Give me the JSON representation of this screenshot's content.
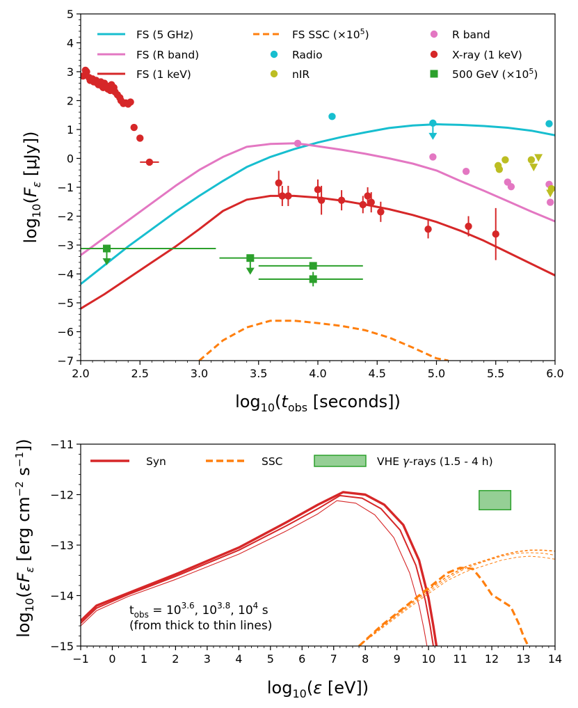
{
  "chart_data": [
    {
      "type": "line",
      "xlabel": "log10(t_obs [seconds])",
      "ylabel": "log10(F_ε [μJy])",
      "xlim": [
        2.0,
        6.0
      ],
      "ylim": [
        -7,
        5
      ],
      "xticks": [
        "2.0",
        "2.5",
        "3.0",
        "3.5",
        "4.0",
        "4.5",
        "5.0",
        "5.5",
        "6.0"
      ],
      "yticks": [
        "-7",
        "-6",
        "-5",
        "-4",
        "-3",
        "-2",
        "-1",
        "0",
        "1",
        "2",
        "3",
        "4",
        "5"
      ],
      "grid": false,
      "legend_position": "top",
      "colors": {
        "cyan": "#17becf",
        "pink": "#e377c2",
        "red": "#d62728",
        "orange": "#ff7f0e",
        "olive": "#bcbd22",
        "green": "#2ca02c"
      },
      "legend": [
        {
          "label": "FS (5 GHz)",
          "kind": "line",
          "color": "#17becf"
        },
        {
          "label": "FS (R band)",
          "kind": "line",
          "color": "#e377c2"
        },
        {
          "label": "FS (1 keV)",
          "kind": "line",
          "color": "#d62728"
        },
        {
          "label": "FS SSC (×10⁵)",
          "kind": "dashed",
          "color": "#ff7f0e"
        },
        {
          "label": "Radio",
          "kind": "dot",
          "color": "#17becf"
        },
        {
          "label": "nIR",
          "kind": "dot",
          "color": "#bcbd22"
        },
        {
          "label": "R band",
          "kind": "dot",
          "color": "#e377c2"
        },
        {
          "label": "X-ray (1 keV)",
          "kind": "dot",
          "color": "#d62728"
        },
        {
          "label": "500 GeV (×10⁵)",
          "kind": "square",
          "color": "#2ca02c"
        }
      ],
      "series": [
        {
          "name": "FS (5 GHz)",
          "color": "#17becf",
          "style": "solid",
          "x": [
            2.0,
            2.2,
            2.4,
            2.6,
            2.8,
            3.0,
            3.2,
            3.4,
            3.6,
            3.8,
            4.0,
            4.2,
            4.4,
            4.6,
            4.8,
            5.0,
            5.2,
            5.4,
            5.6,
            5.8,
            6.0
          ],
          "y": [
            -4.35,
            -3.7,
            -3.05,
            -2.45,
            -1.85,
            -1.3,
            -0.78,
            -0.3,
            0.05,
            0.32,
            0.55,
            0.74,
            0.9,
            1.05,
            1.14,
            1.18,
            1.16,
            1.12,
            1.06,
            0.96,
            0.8
          ]
        },
        {
          "name": "FS (R band)",
          "color": "#e377c2",
          "style": "solid",
          "x": [
            2.0,
            2.2,
            2.4,
            2.6,
            2.8,
            3.0,
            3.2,
            3.4,
            3.6,
            3.8,
            3.9,
            4.0,
            4.2,
            4.4,
            4.6,
            4.8,
            5.0,
            5.2,
            5.4,
            5.6,
            5.8,
            6.0
          ],
          "y": [
            -3.35,
            -2.75,
            -2.15,
            -1.55,
            -0.95,
            -0.4,
            0.05,
            0.4,
            0.5,
            0.52,
            0.48,
            0.42,
            0.3,
            0.16,
            0.0,
            -0.18,
            -0.42,
            -0.78,
            -1.12,
            -1.48,
            -1.84,
            -2.18
          ]
        },
        {
          "name": "FS (1 keV)",
          "color": "#d62728",
          "style": "solid",
          "x": [
            2.0,
            2.2,
            2.4,
            2.6,
            2.8,
            3.0,
            3.2,
            3.4,
            3.6,
            3.8,
            4.0,
            4.2,
            4.4,
            4.6,
            4.8,
            5.0,
            5.2,
            5.4,
            5.6,
            5.8,
            6.0
          ],
          "y": [
            -5.2,
            -4.7,
            -4.15,
            -3.6,
            -3.05,
            -2.45,
            -1.82,
            -1.43,
            -1.3,
            -1.3,
            -1.36,
            -1.46,
            -1.6,
            -1.76,
            -1.96,
            -2.2,
            -2.5,
            -2.85,
            -3.25,
            -3.65,
            -4.05
          ]
        },
        {
          "name": "FS SSC (×10⁵)",
          "color": "#ff7f0e",
          "style": "dashed",
          "x": [
            3.0,
            3.2,
            3.4,
            3.6,
            3.8,
            4.0,
            4.2,
            4.4,
            4.6,
            4.8,
            5.0,
            5.1
          ],
          "y": [
            -7.0,
            -6.3,
            -5.85,
            -5.62,
            -5.62,
            -5.7,
            -5.8,
            -5.95,
            -6.2,
            -6.55,
            -6.92,
            -7.0
          ]
        }
      ],
      "points": {
        "xray": {
          "color": "#d62728",
          "x": [
            2.02,
            2.04,
            2.05,
            2.07,
            2.08,
            2.1,
            2.11,
            2.13,
            2.14,
            2.15,
            2.17,
            2.18,
            2.19,
            2.2,
            2.22,
            2.23,
            2.25,
            2.26,
            2.28,
            2.29,
            2.31,
            2.33,
            2.34,
            2.36,
            2.38,
            2.4,
            2.42,
            2.45,
            2.5
          ],
          "y": [
            2.85,
            3.05,
            3.0,
            2.8,
            2.7,
            2.75,
            2.65,
            2.7,
            2.6,
            2.55,
            2.65,
            2.5,
            2.45,
            2.6,
            2.5,
            2.4,
            2.35,
            2.55,
            2.45,
            2.3,
            2.2,
            2.1,
            2.0,
            1.9,
            1.92,
            1.88,
            1.95,
            1.07,
            0.7
          ]
        },
        "xray_err": {
          "color": "#d62728",
          "x": [
            2.58,
            3.67,
            3.7,
            3.75,
            4.0,
            4.03,
            4.2,
            4.38,
            4.42,
            4.45,
            4.53,
            4.93,
            5.27,
            5.5
          ],
          "y": [
            -0.13,
            -0.85,
            -1.3,
            -1.3,
            -1.08,
            -1.45,
            -1.45,
            -1.6,
            -1.3,
            -1.52,
            -1.85,
            -2.45,
            -2.35,
            -2.62
          ],
          "yerr": [
            0,
            0.42,
            0.35,
            0.35,
            0.35,
            0.5,
            0.35,
            0.3,
            0.3,
            0.35,
            0.35,
            0.32,
            0.35,
            0.9
          ],
          "xerr": [
            0.08,
            0,
            0,
            0,
            0,
            0,
            0,
            0,
            0,
            0,
            0,
            0,
            0,
            0
          ]
        },
        "radio": {
          "color": "#17becf",
          "x": [
            4.12,
            4.97,
            5.95
          ],
          "y": [
            1.45,
            1.22,
            1.2
          ],
          "upper_limit": [
            false,
            true,
            false
          ]
        },
        "rband": {
          "color": "#e377c2",
          "x": [
            3.83,
            4.97,
            5.25,
            5.6,
            5.63,
            5.95,
            5.96
          ],
          "y": [
            0.52,
            0.05,
            -0.45,
            -0.82,
            -0.98,
            -0.9,
            -1.52
          ]
        },
        "nir": {
          "color": "#bcbd22",
          "x": [
            5.52,
            5.53,
            5.58,
            5.8,
            5.82,
            5.86,
            5.96,
            5.97
          ],
          "y": [
            -0.25,
            -0.38,
            -0.05,
            -0.05,
            -0.28,
            0.05,
            -1.18,
            -1.05
          ],
          "upper_limit": [
            false,
            false,
            false,
            false,
            true,
            true,
            true,
            false
          ]
        },
        "gev500": {
          "color": "#2ca02c",
          "x": [
            2.22,
            3.43,
            3.96,
            3.96
          ],
          "y": [
            -3.12,
            -3.45,
            -3.72,
            -4.18
          ],
          "xlo": [
            2.0,
            3.17,
            3.5,
            3.5
          ],
          "xhi": [
            3.14,
            3.95,
            4.38,
            4.38
          ],
          "upper_limit": [
            true,
            true,
            false,
            false
          ],
          "yerr": [
            0,
            0,
            0,
            0.25
          ]
        }
      }
    },
    {
      "type": "line",
      "xlabel": "log10(ε [eV])",
      "ylabel": "log10(εF_ε [erg cm⁻² s⁻¹])",
      "xlim": [
        -1,
        14
      ],
      "ylim": [
        -15,
        -11
      ],
      "xticks": [
        "−1",
        "0",
        "1",
        "2",
        "3",
        "4",
        "5",
        "6",
        "7",
        "8",
        "9",
        "10",
        "11",
        "12",
        "13",
        "14"
      ],
      "yticks": [
        "−15",
        "−14",
        "−13",
        "−12",
        "−11"
      ],
      "grid": false,
      "legend_position": "top",
      "legend": [
        {
          "label": "Syn",
          "kind": "line",
          "color": "#d62728"
        },
        {
          "label": "SSC",
          "kind": "dashed",
          "color": "#ff7f0e"
        },
        {
          "label": "VHE γ-rays (1.5 - 4 h)",
          "kind": "box",
          "color": "#2ca02c"
        }
      ],
      "annotation_line1": "t",
      "annotation_sub": "obs",
      "annotation_eq": " = 10",
      "annotation_exp1": "3.6",
      "annotation_sep1": ", 10",
      "annotation_exp2": "3.8",
      "annotation_sep2": ", 10",
      "annotation_exp3": "4",
      "annotation_unit": " s",
      "annotation_line2": "(from thick to thin lines)",
      "vhe_box": {
        "x": [
          11.6,
          12.6
        ],
        "y": [
          -12.3,
          -11.92
        ]
      },
      "syn": [
        {
          "width": 3.4,
          "x": [
            -1.0,
            -0.5,
            0.5,
            2.0,
            4.0,
            5.5,
            6.5,
            7.3,
            8.0,
            8.6,
            9.2,
            9.7,
            10.0,
            10.15,
            10.25
          ],
          "y": [
            -14.5,
            -14.2,
            -13.95,
            -13.58,
            -13.05,
            -12.55,
            -12.2,
            -11.95,
            -12.0,
            -12.2,
            -12.6,
            -13.3,
            -14.05,
            -14.6,
            -15.0
          ]
        },
        {
          "width": 2.0,
          "x": [
            -1.0,
            -0.5,
            0.5,
            2.0,
            4.0,
            5.5,
            6.5,
            7.2,
            7.9,
            8.5,
            9.1,
            9.6,
            9.9,
            10.05,
            10.15
          ],
          "y": [
            -14.55,
            -14.25,
            -13.98,
            -13.62,
            -13.1,
            -12.62,
            -12.28,
            -12.02,
            -12.07,
            -12.28,
            -12.7,
            -13.4,
            -14.1,
            -14.6,
            -15.0
          ]
        },
        {
          "width": 1.1,
          "x": [
            -1.0,
            -0.5,
            0.5,
            2.0,
            4.0,
            5.5,
            6.5,
            7.1,
            7.7,
            8.3,
            8.9,
            9.4,
            9.7,
            9.85,
            9.95
          ],
          "y": [
            -14.6,
            -14.3,
            -14.02,
            -13.68,
            -13.18,
            -12.72,
            -12.38,
            -12.12,
            -12.17,
            -12.4,
            -12.85,
            -13.55,
            -14.2,
            -14.65,
            -15.0
          ]
        }
      ],
      "ssc": [
        {
          "width": 3.2,
          "x": [
            7.8,
            8.5,
            9.3,
            10.0,
            10.6,
            11.0,
            11.4,
            11.7,
            12.0,
            12.3,
            12.6,
            12.85,
            13.0,
            13.15
          ],
          "y": [
            -15.0,
            -14.6,
            -14.2,
            -13.85,
            -13.55,
            -13.45,
            -13.47,
            -13.7,
            -13.98,
            -14.1,
            -14.22,
            -14.55,
            -14.8,
            -15.0
          ]
        },
        {
          "width": 1.6,
          "x": [
            7.8,
            8.5,
            9.3,
            10.0,
            10.6,
            11.2,
            11.8,
            12.3,
            12.8,
            13.2,
            13.6,
            14.0
          ],
          "y": [
            -15.0,
            -14.62,
            -14.22,
            -13.88,
            -13.62,
            -13.42,
            -13.3,
            -13.2,
            -13.13,
            -13.1,
            -13.1,
            -13.12
          ]
        },
        {
          "width": 1.0,
          "x": [
            7.8,
            8.5,
            9.3,
            10.0,
            10.6,
            11.2,
            11.8,
            12.3,
            12.8,
            13.2,
            13.6,
            14.0
          ],
          "y": [
            -15.0,
            -14.64,
            -14.25,
            -13.92,
            -13.66,
            -13.45,
            -13.32,
            -13.22,
            -13.16,
            -13.15,
            -13.16,
            -13.2
          ]
        },
        {
          "width": 1.0,
          "x": [
            7.8,
            8.5,
            9.3,
            10.0,
            10.6,
            11.2,
            11.8,
            12.3,
            12.8,
            13.2,
            13.6,
            14.0
          ],
          "y": [
            -15.0,
            -14.66,
            -14.28,
            -13.96,
            -13.7,
            -13.52,
            -13.4,
            -13.3,
            -13.24,
            -13.22,
            -13.24,
            -13.28
          ]
        }
      ]
    }
  ]
}
